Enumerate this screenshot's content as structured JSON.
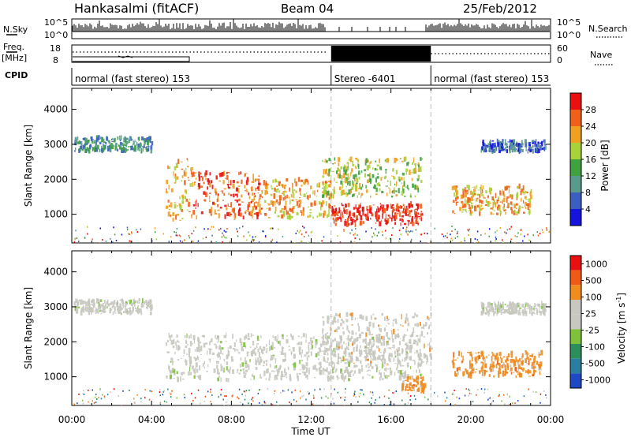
{
  "header": {
    "station": "Hankasalmi (fitACF)",
    "beam": "Beam 04",
    "date": "25/Feb/2012"
  },
  "summary_panels": {
    "nsky_label": "N.Sky",
    "nsky_ticks": [
      "10^5",
      "10^0"
    ],
    "nsearch_label": "N.Search",
    "nsearch_ticks": [
      "10^5",
      "10^0"
    ],
    "freq_label": "Freq.",
    "freq_unit": "[MHz]",
    "freq_ticks": [
      "18",
      "8"
    ],
    "nave_label": "Nave",
    "nave_ticks": [
      "60",
      "0"
    ],
    "cpid_label": "CPID",
    "cpid_segments": [
      {
        "label": "normal (fast stereo) 153",
        "start_hour": 0,
        "end_hour": 13
      },
      {
        "label": "Stereo -6401",
        "start_hour": 13,
        "end_hour": 18
      },
      {
        "label": "normal (fast stereo) 153",
        "start_hour": 18,
        "end_hour": 24
      }
    ]
  },
  "colors": {
    "power_scale": [
      "#1414dc",
      "#3b5fc0",
      "#5a9a8a",
      "#3fa23f",
      "#a8d23a",
      "#f0a020",
      "#f06018",
      "#e81010"
    ],
    "velocity_scale": [
      "#1f49c4",
      "#2a7fa0",
      "#2a8f5a",
      "#7dc23a",
      "#c8c8c0",
      "#c8c8c0",
      "#f08c1e",
      "#f05a14",
      "#e81010"
    ]
  },
  "chart_data": [
    {
      "type": "heatmap",
      "panel": "power",
      "ylabel": "Slant Range [km]",
      "ylim": [
        180,
        4600
      ],
      "yticks": [
        "1000",
        "2000",
        "3000",
        "4000"
      ],
      "xlim": [
        0,
        24
      ],
      "colorbar_label": "Power [dB]",
      "colorbar_ticks": [
        "4",
        "8",
        "12",
        "16",
        "20",
        "24",
        "28"
      ],
      "regions": [
        {
          "t0": 0.1,
          "t1": 4.0,
          "r0": 2800,
          "r1": 3200,
          "level": 2
        },
        {
          "t0": 4.7,
          "t1": 6.0,
          "r0": 800,
          "r1": 2600,
          "level": 5
        },
        {
          "t0": 6.0,
          "t1": 9.5,
          "r0": 900,
          "r1": 2200,
          "level": 6
        },
        {
          "t0": 9.5,
          "t1": 13.0,
          "r0": 900,
          "r1": 2000,
          "level": 5
        },
        {
          "t0": 13.0,
          "t1": 17.5,
          "r0": 700,
          "r1": 1300,
          "level": 7
        },
        {
          "t0": 12.5,
          "t1": 17.5,
          "r0": 1500,
          "r1": 2600,
          "level": 4
        },
        {
          "t0": 19.0,
          "t1": 23.0,
          "r0": 1000,
          "r1": 1800,
          "level": 5
        },
        {
          "t0": 20.5,
          "t1": 23.7,
          "r0": 2800,
          "r1": 3100,
          "level": 1
        }
      ]
    },
    {
      "type": "heatmap",
      "panel": "velocity",
      "ylabel": "Slant Range [km]",
      "ylim": [
        180,
        4600
      ],
      "yticks": [
        "1000",
        "2000",
        "3000",
        "4000"
      ],
      "xlim": [
        0,
        24
      ],
      "xlabel": "Time UT",
      "xticks": [
        "00:00",
        "04:00",
        "08:00",
        "12:00",
        "16:00",
        "20:00",
        "00:00"
      ],
      "colorbar_label": "Velocity [m s",
      "colorbar_label_sup": "-1",
      "colorbar_label_end": "]",
      "colorbar_ticks": [
        "1000",
        "500",
        "100",
        "25",
        "-25",
        "-100",
        "-500",
        "-1000"
      ],
      "regions": [
        {
          "t0": 0.1,
          "t1": 4.0,
          "r0": 2800,
          "r1": 3200,
          "level": 4
        },
        {
          "t0": 4.7,
          "t1": 17.5,
          "r0": 900,
          "r1": 2200,
          "level": 4
        },
        {
          "t0": 12.5,
          "t1": 18.0,
          "r0": 1300,
          "r1": 2800,
          "level": 5
        },
        {
          "t0": 16.5,
          "t1": 17.7,
          "r0": 600,
          "r1": 1000,
          "level": 6
        },
        {
          "t0": 19.0,
          "t1": 23.5,
          "r0": 1000,
          "r1": 1700,
          "level": 6
        },
        {
          "t0": 20.5,
          "t1": 23.7,
          "r0": 2800,
          "r1": 3100,
          "level": 4
        }
      ]
    }
  ]
}
